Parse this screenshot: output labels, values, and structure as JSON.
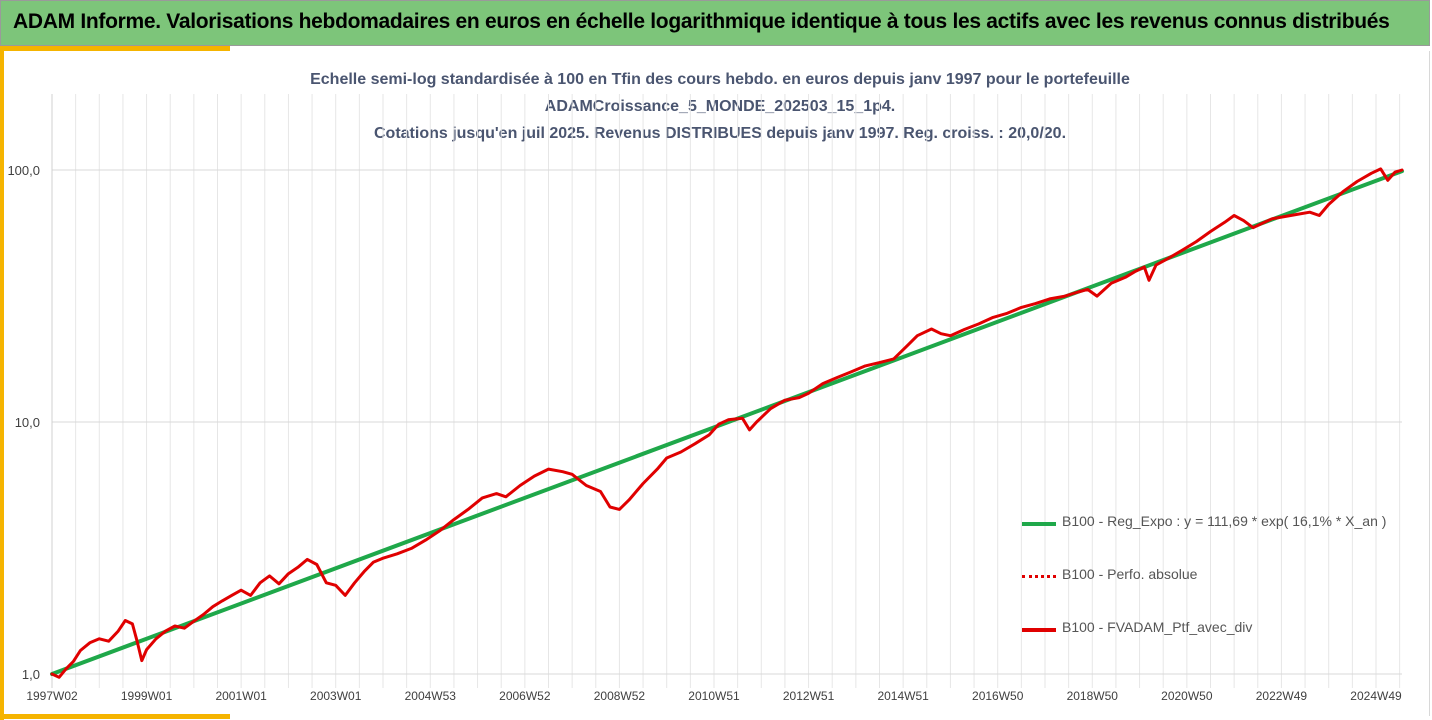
{
  "banner": {
    "title": "ADAM Informe. Valorisations hebdomadaires en euros en échelle logarithmique identique à tous les actifs avec les revenus connus distribués"
  },
  "colors": {
    "banner_bg": "#7dc57a",
    "accent": "#f5b400",
    "regression": "#1fa84a",
    "portfolio": "#e00000",
    "title_text": "#4a5570"
  },
  "chart_data": {
    "type": "line",
    "title_lines": [
      "Echelle semi-log standardisée à 100 en Tfin des cours hebdo.  en euros depuis janv 1997 pour le portefeuille",
      "ADAMCroissance_5_MONDE_202503_15_1p4.",
      "Cotations  jusqu'en juil 2025. Revenus DISTRIBUES depuis janv 1997. Reg. croiss. : 20,0/20."
    ],
    "y_scale": "log",
    "ylim": [
      1,
      200
    ],
    "y_ticks": [
      1,
      10,
      100
    ],
    "y_tick_labels": [
      "1,0",
      "10,0",
      "100,0"
    ],
    "xlim": [
      1997.0,
      2025.55
    ],
    "x_ticks": [
      {
        "label": "1997W02",
        "year": 1997.0
      },
      {
        "label": "1999W01",
        "year": 1999.0
      },
      {
        "label": "2001W01",
        "year": 2001.0
      },
      {
        "label": "2003W01",
        "year": 2003.0
      },
      {
        "label": "2004W53",
        "year": 2005.0
      },
      {
        "label": "2006W52",
        "year": 2007.0
      },
      {
        "label": "2008W52",
        "year": 2009.0
      },
      {
        "label": "2010W51",
        "year": 2011.0
      },
      {
        "label": "2012W51",
        "year": 2013.0
      },
      {
        "label": "2014W51",
        "year": 2015.0
      },
      {
        "label": "2016W50",
        "year": 2017.0
      },
      {
        "label": "2018W50",
        "year": 2019.0
      },
      {
        "label": "2020W50",
        "year": 2021.0
      },
      {
        "label": "2022W49",
        "year": 2023.0
      },
      {
        "label": "2024W49",
        "year": 2025.0
      }
    ],
    "grid": true,
    "legend_position": "bottom-right",
    "series": [
      {
        "name": "B100 - Reg_Expo : y = 111,69 * exp( 16,1% *  X_an )",
        "style": "solid-green",
        "points": [
          [
            1997.0,
            1.0
          ],
          [
            2025.55,
            99.0
          ]
        ]
      },
      {
        "name": "B100 - Perfo. absolue",
        "style": "dotted-red",
        "points": []
      },
      {
        "name": "B100 - FVADAM_Ptf_avec_div",
        "style": "solid-red",
        "points": [
          [
            1997.0,
            1.0
          ],
          [
            1997.15,
            0.97
          ],
          [
            1997.3,
            1.05
          ],
          [
            1997.45,
            1.12
          ],
          [
            1997.6,
            1.24
          ],
          [
            1997.8,
            1.33
          ],
          [
            1998.0,
            1.38
          ],
          [
            1998.2,
            1.35
          ],
          [
            1998.4,
            1.48
          ],
          [
            1998.55,
            1.63
          ],
          [
            1998.7,
            1.58
          ],
          [
            1998.8,
            1.35
          ],
          [
            1998.9,
            1.13
          ],
          [
            1999.0,
            1.25
          ],
          [
            1999.2,
            1.38
          ],
          [
            1999.4,
            1.48
          ],
          [
            1999.6,
            1.55
          ],
          [
            1999.8,
            1.52
          ],
          [
            2000.0,
            1.62
          ],
          [
            2000.2,
            1.72
          ],
          [
            2000.4,
            1.85
          ],
          [
            2000.6,
            1.95
          ],
          [
            2000.8,
            2.05
          ],
          [
            2001.0,
            2.15
          ],
          [
            2001.2,
            2.05
          ],
          [
            2001.4,
            2.3
          ],
          [
            2001.6,
            2.45
          ],
          [
            2001.8,
            2.28
          ],
          [
            2002.0,
            2.5
          ],
          [
            2002.2,
            2.65
          ],
          [
            2002.4,
            2.85
          ],
          [
            2002.6,
            2.72
          ],
          [
            2002.8,
            2.3
          ],
          [
            2003.0,
            2.25
          ],
          [
            2003.2,
            2.05
          ],
          [
            2003.4,
            2.3
          ],
          [
            2003.6,
            2.55
          ],
          [
            2003.8,
            2.78
          ],
          [
            2004.0,
            2.88
          ],
          [
            2004.3,
            3.0
          ],
          [
            2004.6,
            3.15
          ],
          [
            2004.9,
            3.4
          ],
          [
            2005.2,
            3.7
          ],
          [
            2005.5,
            4.1
          ],
          [
            2005.8,
            4.5
          ],
          [
            2006.1,
            5.0
          ],
          [
            2006.4,
            5.2
          ],
          [
            2006.6,
            5.05
          ],
          [
            2006.9,
            5.6
          ],
          [
            2007.2,
            6.1
          ],
          [
            2007.5,
            6.5
          ],
          [
            2007.8,
            6.35
          ],
          [
            2008.0,
            6.2
          ],
          [
            2008.3,
            5.6
          ],
          [
            2008.6,
            5.3
          ],
          [
            2008.8,
            4.6
          ],
          [
            2009.0,
            4.5
          ],
          [
            2009.2,
            4.9
          ],
          [
            2009.5,
            5.7
          ],
          [
            2009.8,
            6.5
          ],
          [
            2010.0,
            7.2
          ],
          [
            2010.3,
            7.6
          ],
          [
            2010.6,
            8.2
          ],
          [
            2010.9,
            8.9
          ],
          [
            2011.1,
            9.8
          ],
          [
            2011.3,
            10.2
          ],
          [
            2011.6,
            10.35
          ],
          [
            2011.75,
            9.3
          ],
          [
            2011.9,
            10.0
          ],
          [
            2012.2,
            11.3
          ],
          [
            2012.5,
            12.2
          ],
          [
            2012.8,
            12.5
          ],
          [
            2013.0,
            13.0
          ],
          [
            2013.3,
            14.2
          ],
          [
            2013.6,
            15.0
          ],
          [
            2013.9,
            15.8
          ],
          [
            2014.2,
            16.7
          ],
          [
            2014.5,
            17.2
          ],
          [
            2014.8,
            17.8
          ],
          [
            2015.1,
            20.2
          ],
          [
            2015.3,
            22.0
          ],
          [
            2015.6,
            23.4
          ],
          [
            2015.8,
            22.4
          ],
          [
            2016.0,
            22.0
          ],
          [
            2016.3,
            23.3
          ],
          [
            2016.6,
            24.5
          ],
          [
            2016.9,
            26.0
          ],
          [
            2017.2,
            27.0
          ],
          [
            2017.5,
            28.5
          ],
          [
            2017.8,
            29.5
          ],
          [
            2018.1,
            30.8
          ],
          [
            2018.4,
            31.5
          ],
          [
            2018.7,
            32.8
          ],
          [
            2018.9,
            33.6
          ],
          [
            2019.1,
            31.6
          ],
          [
            2019.4,
            35.5
          ],
          [
            2019.7,
            37.5
          ],
          [
            2019.9,
            39.5
          ],
          [
            2020.1,
            41.2
          ],
          [
            2020.2,
            36.5
          ],
          [
            2020.35,
            42.0
          ],
          [
            2020.6,
            44.5
          ],
          [
            2020.9,
            48.0
          ],
          [
            2021.2,
            52.0
          ],
          [
            2021.5,
            57.0
          ],
          [
            2021.8,
            62.0
          ],
          [
            2022.0,
            66.0
          ],
          [
            2022.2,
            63.0
          ],
          [
            2022.4,
            59.0
          ],
          [
            2022.6,
            61.5
          ],
          [
            2022.8,
            64.0
          ],
          [
            2023.0,
            65.0
          ],
          [
            2023.3,
            66.5
          ],
          [
            2023.6,
            68.0
          ],
          [
            2023.8,
            66.0
          ],
          [
            2024.0,
            73.0
          ],
          [
            2024.3,
            82.0
          ],
          [
            2024.6,
            90.0
          ],
          [
            2024.9,
            97.0
          ],
          [
            2025.1,
            101.0
          ],
          [
            2025.25,
            91.0
          ],
          [
            2025.4,
            98.0
          ],
          [
            2025.55,
            100.0
          ]
        ]
      }
    ]
  }
}
